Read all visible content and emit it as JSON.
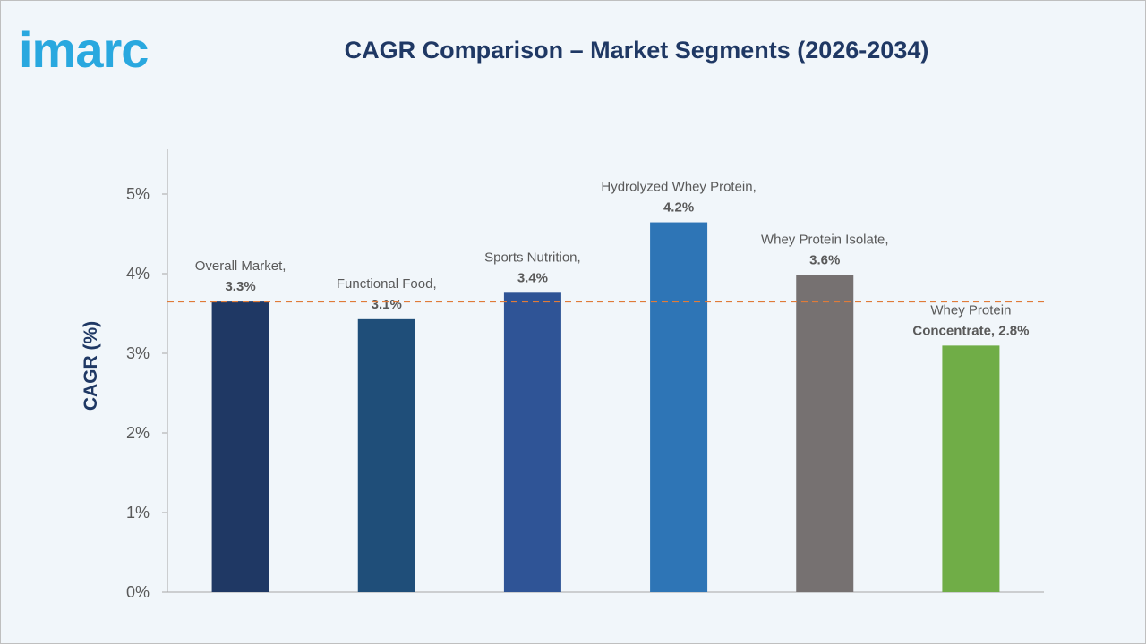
{
  "brand": {
    "logo_text": "imarc",
    "logo_color": "#29a8df"
  },
  "title": "CAGR Comparison – Market Segments (2026-2034)",
  "chart_data": {
    "type": "bar",
    "title": "CAGR Comparison – Market Segments (2026-2034)",
    "ylabel": "CAGR (%)",
    "xlabel": "",
    "ylim": [
      0,
      5
    ],
    "yticks": [
      0,
      1,
      2,
      3,
      4,
      5
    ],
    "ytick_labels": [
      "0%",
      "1%",
      "2%",
      "3%",
      "4%",
      "5%"
    ],
    "grid": false,
    "categories": [
      "Overall Market",
      "Functional Food",
      "Sports Nutrition",
      "Hydrolyzed Whey Protein",
      "Whey Protein Isolate",
      "Whey Protein Concentrate"
    ],
    "values": [
      3.3,
      3.1,
      3.4,
      4.2,
      3.6,
      2.8
    ],
    "data_labels": [
      [
        "Overall Market,",
        "3.3%"
      ],
      [
        "Functional Food,",
        "3.1%"
      ],
      [
        "Sports Nutrition,",
        "3.4%"
      ],
      [
        "Hydrolyzed Whey Protein,",
        "4.2%"
      ],
      [
        "Whey Protein Isolate,",
        "3.6%"
      ],
      [
        "Whey Protein",
        "Concentrate, 2.8%"
      ]
    ],
    "colors": [
      "#1f3864",
      "#1f4e79",
      "#2f5496",
      "#2e75b6",
      "#767171",
      "#70ad47"
    ],
    "reference_line": {
      "value": 3.3,
      "color": "#e07b39",
      "style": "dashed"
    }
  }
}
